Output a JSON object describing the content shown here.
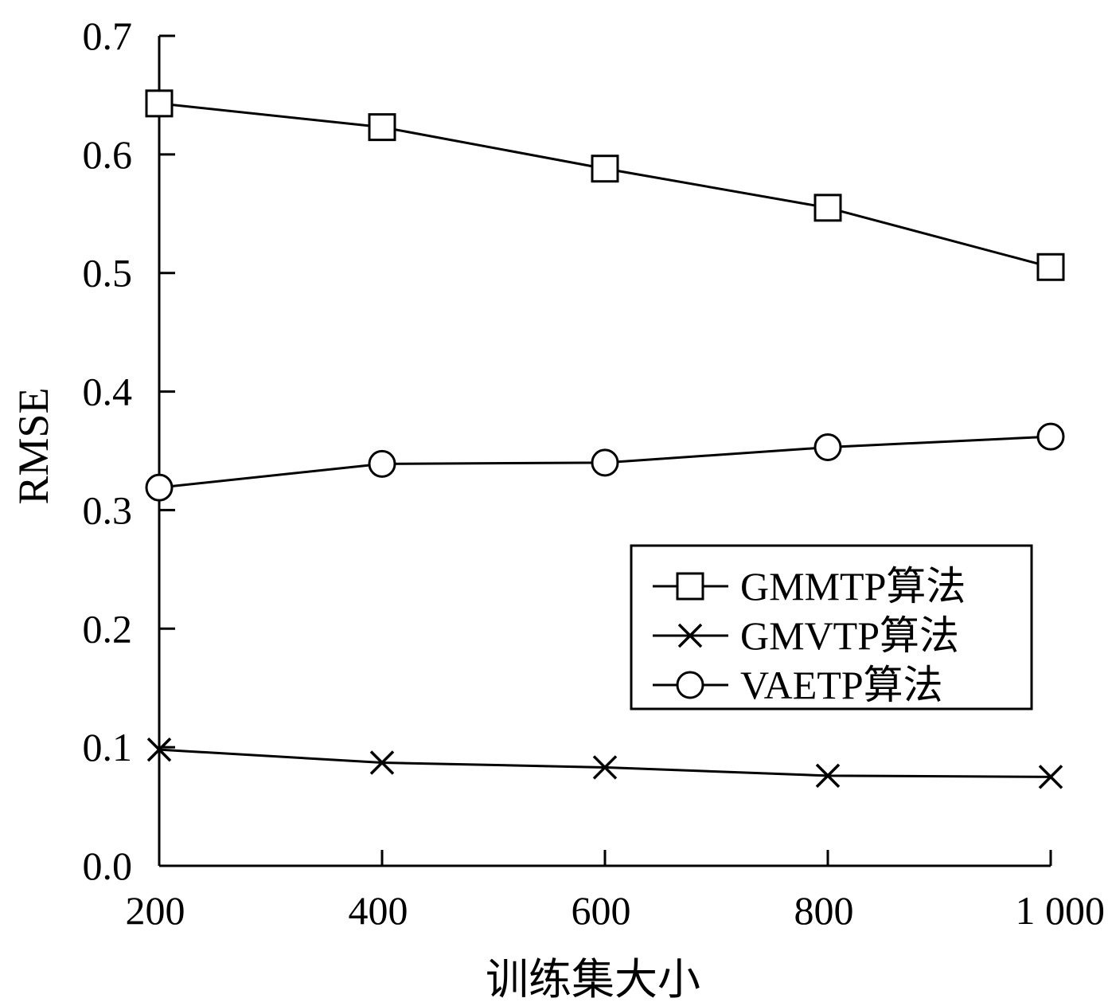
{
  "chart_data": {
    "type": "line",
    "title": "",
    "xlabel": "训练集大小",
    "ylabel": "RMSE",
    "x": [
      200,
      400,
      600,
      800,
      1000
    ],
    "x_tick_labels": [
      "200",
      "400",
      "600",
      "800",
      "1 000"
    ],
    "xlim": [
      200,
      1000
    ],
    "ylim": [
      0,
      0.7
    ],
    "y_ticks": [
      0.0,
      0.1,
      0.2,
      0.3,
      0.4,
      0.5,
      0.6,
      0.7
    ],
    "y_tick_labels": [
      "0.0",
      "0.1",
      "0.2",
      "0.3",
      "0.4",
      "0.5",
      "0.6",
      "0.7"
    ],
    "grid": false,
    "legend_position": "center-right",
    "series": [
      {
        "name": "GMMTP算法",
        "marker": "square",
        "color": "#000000",
        "values": [
          0.643,
          0.623,
          0.588,
          0.555,
          0.505
        ]
      },
      {
        "name": "GMVTP算法",
        "marker": "x",
        "color": "#000000",
        "values": [
          0.098,
          0.087,
          0.083,
          0.076,
          0.075
        ]
      },
      {
        "name": "VAETP算法",
        "marker": "circle",
        "color": "#000000",
        "values": [
          0.319,
          0.339,
          0.34,
          0.353,
          0.362
        ]
      }
    ]
  }
}
